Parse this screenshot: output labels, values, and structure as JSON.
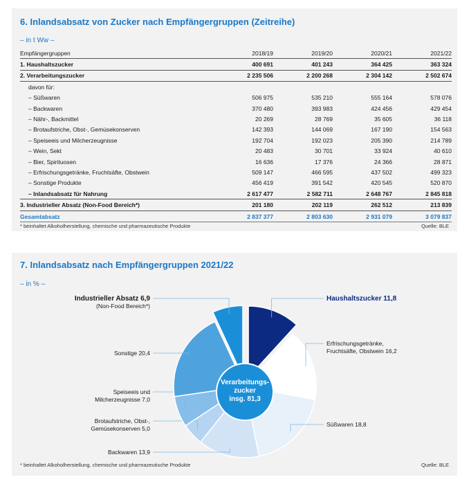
{
  "table_section": {
    "title": "6. Inlandsabsatz von Zucker nach Empfängergruppen (Zeitreihe)",
    "unit": "– in t Ww –",
    "footnote": "* beinhaltet Alkoholherstellung, chemische und pharmazeutische Produkte",
    "source": "Quelle: BLE"
  },
  "chart_data": [
    {
      "type": "table",
      "title": "6. Inlandsabsatz von Zucker nach Empfängergruppen (Zeitreihe)",
      "columns": [
        "Empfängergruppen",
        "2018/19",
        "2019/20",
        "2020/21",
        "2021/22"
      ],
      "rows": [
        {
          "label": "1. Haushaltszucker",
          "style": "bold",
          "values": [
            "400 691",
            "401 243",
            "364 425",
            "363 324"
          ]
        },
        {
          "label": "2. Verarbeitungszucker",
          "style": "bold",
          "values": [
            "2 235 506",
            "2 200 268",
            "2 304 142",
            "2 502 674"
          ]
        },
        {
          "label": "davon für:",
          "style": "indent",
          "values": [
            "",
            "",
            "",
            ""
          ]
        },
        {
          "label": "– Süßwaren",
          "style": "indent",
          "values": [
            "506 975",
            "535 210",
            "555 164",
            "578 076"
          ]
        },
        {
          "label": "– Backwaren",
          "style": "indent",
          "values": [
            "370 480",
            "393 983",
            "424 456",
            "429 454"
          ]
        },
        {
          "label": "– Nähr-, Backmittel",
          "style": "indent",
          "values": [
            "20 269",
            "28 769",
            "35 605",
            "36 118"
          ]
        },
        {
          "label": "– Brotaufstriche, Obst-, Gemüsekonserven",
          "style": "indent",
          "values": [
            "142 393",
            "144 069",
            "167 190",
            "154 563"
          ]
        },
        {
          "label": "– Speiseeis und Milcherzeugnisse",
          "style": "indent",
          "values": [
            "192 704",
            "192 023",
            "205 390",
            "214 789"
          ]
        },
        {
          "label": "– Wein, Sekt",
          "style": "indent",
          "values": [
            "20 483",
            "30 701",
            "33 924",
            "40 610"
          ]
        },
        {
          "label": "– Bier, Spirituosen",
          "style": "indent",
          "values": [
            "16 636",
            "17 376",
            "24 366",
            "28 871"
          ]
        },
        {
          "label": "– Erfrischungsgetränke, Fruchtsäfte, Obstwein",
          "style": "indent",
          "values": [
            "509 147",
            "466 595",
            "437 502",
            "499 323"
          ]
        },
        {
          "label": "– Sonstige Produkte",
          "style": "indent",
          "values": [
            "456 419",
            "391 542",
            "420 545",
            "520 870"
          ]
        },
        {
          "label": "– Inlandsabsatz für Nahrung",
          "style": "indent-bold",
          "values": [
            "2 617 477",
            "2 582 711",
            "2 648 767",
            "2 845 818"
          ]
        },
        {
          "label": "3. Industrieller Absatz (Non-Food Bereich*)",
          "style": "bold",
          "values": [
            "201 180",
            "202 119",
            "262 512",
            "213 839"
          ]
        },
        {
          "label": "Gesamtabsatz",
          "style": "total",
          "values": [
            "2 837 377",
            "2 803 630",
            "2 931 079",
            "3 079 837"
          ]
        }
      ]
    },
    {
      "type": "pie",
      "title": "7. Inlandsabsatz nach Empfängergruppen 2021/22",
      "unit": "– in % –",
      "center_label": [
        "Verarbeitungs-",
        "zucker",
        "insg. 81,3"
      ],
      "slices": [
        {
          "key": "haushalt",
          "lines": [
            "Haushaltszucker 11,8"
          ],
          "value": 11.8,
          "color": "#0d2a82",
          "exploded": true
        },
        {
          "key": "erfrischung",
          "lines": [
            "Erfrischungsgetränke,",
            "Fruchtsäfte, Obstwein 16,2"
          ],
          "value": 16.2,
          "color": "#ffffff",
          "group": "verarbeitung"
        },
        {
          "key": "suess",
          "lines": [
            "Süßwaren 18,8"
          ],
          "value": 18.8,
          "color": "#e8f0fa",
          "group": "verarbeitung"
        },
        {
          "key": "back",
          "lines": [
            "Backwaren 13,9"
          ],
          "value": 13.9,
          "color": "#d3e3f6",
          "group": "verarbeitung"
        },
        {
          "key": "brot",
          "lines": [
            "Brotaufstriche, Obst-,",
            "Gemüsekonserven 5,0"
          ],
          "value": 5.0,
          "color": "#b5d4f1",
          "group": "verarbeitung"
        },
        {
          "key": "speiseeis",
          "lines": [
            "Speiseeis und",
            "Milcherzeugnisse 7,0"
          ],
          "value": 7.0,
          "color": "#86bde9",
          "group": "verarbeitung"
        },
        {
          "key": "sonstige",
          "lines": [
            "Sonstige 20,4"
          ],
          "value": 20.4,
          "color": "#4ea3df",
          "group": "verarbeitung"
        },
        {
          "key": "industrie",
          "lines": [
            "Industrieller Absatz 6,9",
            "(Non-Food Bereich*)"
          ],
          "value": 6.9,
          "color": "#1a8fd8",
          "exploded": true
        }
      ],
      "footnote": "* beinhaltet Alkoholherstellung, chemische und pharmazeutische Produkte",
      "source": "Quelle: BLE"
    }
  ]
}
